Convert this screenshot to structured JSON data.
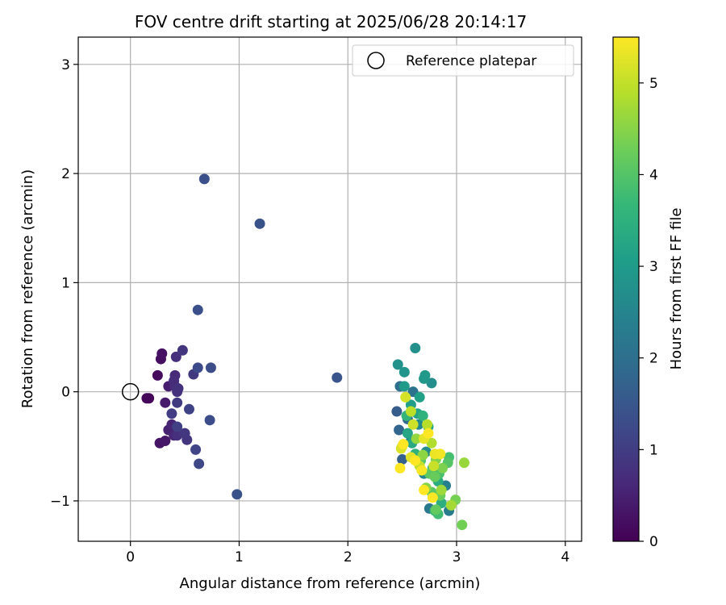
{
  "chart_data": {
    "type": "scatter",
    "title": "FOV centre drift starting at 2025/06/28 20:14:17",
    "xlabel": "Angular distance from reference (arcmin)",
    "ylabel": "Rotation from reference (arcmin)",
    "xlim": [
      -0.48,
      4.15
    ],
    "ylim": [
      -1.37,
      3.25
    ],
    "xticks": [
      0,
      1,
      2,
      3,
      4
    ],
    "yticks": [
      -1,
      0,
      1,
      2,
      3
    ],
    "grid": true,
    "legend": {
      "placement": "top-right",
      "entries": [
        "Reference platepar"
      ]
    },
    "reference_point": {
      "x": 0,
      "y": 0,
      "label": "Reference platepar"
    },
    "colorbar": {
      "label": "Hours from first FF file",
      "range": [
        0,
        5.5
      ],
      "ticks": [
        0,
        1,
        2,
        3,
        4,
        5
      ],
      "colormap": "viridis",
      "colors": [
        "#440154",
        "#482878",
        "#3e4989",
        "#31688e",
        "#26828e",
        "#1f9e89",
        "#35b779",
        "#6ece58",
        "#b5de2b",
        "#fde725"
      ]
    },
    "points": [
      {
        "x": 0.17,
        "y": -0.06,
        "t": 0.05
      },
      {
        "x": 0.15,
        "y": -0.06,
        "t": 0.1
      },
      {
        "x": 0.25,
        "y": 0.15,
        "t": 0.15
      },
      {
        "x": 0.28,
        "y": 0.3,
        "t": 0.2
      },
      {
        "x": 0.29,
        "y": 0.35,
        "t": 0.25
      },
      {
        "x": 0.27,
        "y": -0.47,
        "t": 0.3
      },
      {
        "x": 0.32,
        "y": -0.45,
        "t": 0.35
      },
      {
        "x": 0.32,
        "y": -0.1,
        "t": 0.4
      },
      {
        "x": 0.35,
        "y": 0.05,
        "t": 0.45
      },
      {
        "x": 0.35,
        "y": -0.35,
        "t": 0.5
      },
      {
        "x": 0.38,
        "y": -0.3,
        "t": 0.55
      },
      {
        "x": 0.4,
        "y": -0.4,
        "t": 0.6
      },
      {
        "x": 0.41,
        "y": 0.15,
        "t": 0.65
      },
      {
        "x": 0.4,
        "y": 0.1,
        "t": 0.7
      },
      {
        "x": 0.41,
        "y": 0.05,
        "t": 0.7
      },
      {
        "x": 0.42,
        "y": 0.32,
        "t": 0.75
      },
      {
        "x": 0.43,
        "y": -0.4,
        "t": 0.75
      },
      {
        "x": 0.43,
        "y": 0.0,
        "t": 0.8
      },
      {
        "x": 0.44,
        "y": 0.03,
        "t": 0.8
      },
      {
        "x": 0.48,
        "y": 0.38,
        "t": 0.85
      },
      {
        "x": 0.52,
        "y": -0.44,
        "t": 0.85
      },
      {
        "x": 0.5,
        "y": -0.38,
        "t": 0.9
      },
      {
        "x": 0.43,
        "y": -0.1,
        "t": 0.95
      },
      {
        "x": 0.58,
        "y": 0.16,
        "t": 0.95
      },
      {
        "x": 0.38,
        "y": -0.2,
        "t": 1.0
      },
      {
        "x": 0.43,
        "y": -0.32,
        "t": 1.05
      },
      {
        "x": 0.54,
        "y": -0.16,
        "t": 1.1
      },
      {
        "x": 0.6,
        "y": -0.53,
        "t": 1.15
      },
      {
        "x": 0.63,
        "y": -0.66,
        "t": 1.2
      },
      {
        "x": 0.62,
        "y": 0.22,
        "t": 1.25
      },
      {
        "x": 0.74,
        "y": 0.22,
        "t": 1.3
      },
      {
        "x": 0.73,
        "y": -0.26,
        "t": 1.3
      },
      {
        "x": 0.62,
        "y": 0.75,
        "t": 1.35
      },
      {
        "x": 0.68,
        "y": 1.95,
        "t": 1.35
      },
      {
        "x": 1.19,
        "y": 1.54,
        "t": 1.4
      },
      {
        "x": 0.98,
        "y": -0.94,
        "t": 1.4
      },
      {
        "x": 1.9,
        "y": 0.13,
        "t": 1.45
      },
      {
        "x": 2.45,
        "y": -0.18,
        "t": 1.6
      },
      {
        "x": 2.5,
        "y": -0.62,
        "t": 1.7
      },
      {
        "x": 2.47,
        "y": -0.35,
        "t": 1.8
      },
      {
        "x": 2.55,
        "y": -0.25,
        "t": 1.9
      },
      {
        "x": 2.48,
        "y": 0.05,
        "t": 2.0
      },
      {
        "x": 2.6,
        "y": 0.0,
        "t": 2.1
      },
      {
        "x": 2.75,
        "y": -1.07,
        "t": 2.2
      },
      {
        "x": 2.93,
        "y": -1.09,
        "t": 2.3
      },
      {
        "x": 2.9,
        "y": -0.86,
        "t": 2.4
      },
      {
        "x": 2.7,
        "y": -0.75,
        "t": 2.5
      },
      {
        "x": 2.58,
        "y": -0.45,
        "t": 2.55
      },
      {
        "x": 2.65,
        "y": -0.3,
        "t": 2.6
      },
      {
        "x": 2.72,
        "y": -0.55,
        "t": 2.65
      },
      {
        "x": 2.77,
        "y": 0.08,
        "t": 2.7
      },
      {
        "x": 2.62,
        "y": 0.4,
        "t": 2.75
      },
      {
        "x": 2.46,
        "y": 0.25,
        "t": 2.8
      },
      {
        "x": 2.52,
        "y": 0.18,
        "t": 2.85
      },
      {
        "x": 2.7,
        "y": 0.12,
        "t": 2.9
      },
      {
        "x": 2.71,
        "y": 0.15,
        "t": 2.95
      },
      {
        "x": 2.52,
        "y": 0.05,
        "t": 3.0
      },
      {
        "x": 2.58,
        "y": -0.12,
        "t": 3.05
      },
      {
        "x": 2.66,
        "y": -0.05,
        "t": 3.1
      },
      {
        "x": 2.74,
        "y": -0.32,
        "t": 3.15
      },
      {
        "x": 2.64,
        "y": -0.2,
        "t": 3.2
      },
      {
        "x": 2.55,
        "y": -0.38,
        "t": 3.25
      },
      {
        "x": 2.59,
        "y": -0.47,
        "t": 3.3
      },
      {
        "x": 2.78,
        "y": -0.7,
        "t": 3.35
      },
      {
        "x": 2.83,
        "y": -0.82,
        "t": 3.4
      },
      {
        "x": 2.86,
        "y": -1.02,
        "t": 3.45
      },
      {
        "x": 2.62,
        "y": -0.57,
        "t": 3.5
      },
      {
        "x": 2.69,
        "y": -0.22,
        "t": 3.55
      },
      {
        "x": 2.54,
        "y": -0.22,
        "t": 3.6
      },
      {
        "x": 2.8,
        "y": -1.09,
        "t": 3.7
      },
      {
        "x": 2.83,
        "y": -1.12,
        "t": 3.8
      },
      {
        "x": 2.93,
        "y": -0.6,
        "t": 3.85
      },
      {
        "x": 2.84,
        "y": -0.75,
        "t": 3.9
      },
      {
        "x": 2.67,
        "y": -0.63,
        "t": 3.95
      },
      {
        "x": 2.92,
        "y": -0.65,
        "t": 4.0
      },
      {
        "x": 2.77,
        "y": -0.92,
        "t": 4.05
      },
      {
        "x": 2.75,
        "y": -0.75,
        "t": 4.1
      },
      {
        "x": 2.81,
        "y": -1.08,
        "t": 4.15
      },
      {
        "x": 2.8,
        "y": -0.78,
        "t": 4.2
      },
      {
        "x": 2.85,
        "y": -0.95,
        "t": 4.25
      },
      {
        "x": 3.05,
        "y": -1.22,
        "t": 4.3
      },
      {
        "x": 2.99,
        "y": -0.99,
        "t": 4.35
      },
      {
        "x": 2.87,
        "y": -0.7,
        "t": 4.4
      },
      {
        "x": 2.81,
        "y": -0.62,
        "t": 4.45
      },
      {
        "x": 2.72,
        "y": -0.88,
        "t": 4.5
      },
      {
        "x": 2.69,
        "y": -0.58,
        "t": 4.55
      },
      {
        "x": 2.63,
        "y": -0.43,
        "t": 4.6
      },
      {
        "x": 3.07,
        "y": -0.65,
        "t": 4.65
      },
      {
        "x": 2.86,
        "y": -0.9,
        "t": 4.7
      },
      {
        "x": 2.95,
        "y": -1.04,
        "t": 4.75
      },
      {
        "x": 2.5,
        "y": -0.5,
        "t": 4.8
      },
      {
        "x": 2.77,
        "y": -0.47,
        "t": 4.85
      },
      {
        "x": 2.73,
        "y": -0.3,
        "t": 4.9
      },
      {
        "x": 2.58,
        "y": -0.18,
        "t": 4.95
      },
      {
        "x": 2.66,
        "y": -0.68,
        "t": 5.0
      },
      {
        "x": 2.79,
        "y": -0.68,
        "t": 5.05
      },
      {
        "x": 2.6,
        "y": -0.3,
        "t": 5.1
      },
      {
        "x": 2.53,
        "y": -0.05,
        "t": 5.15
      },
      {
        "x": 2.49,
        "y": -0.52,
        "t": 5.2
      },
      {
        "x": 2.58,
        "y": -0.6,
        "t": 5.25
      },
      {
        "x": 2.7,
        "y": -0.43,
        "t": 5.3
      },
      {
        "x": 2.8,
        "y": -0.57,
        "t": 5.35
      },
      {
        "x": 2.85,
        "y": -0.57,
        "t": 5.4
      },
      {
        "x": 2.68,
        "y": -0.72,
        "t": 5.45
      },
      {
        "x": 2.48,
        "y": -0.7,
        "t": 5.5
      },
      {
        "x": 2.7,
        "y": -0.9,
        "t": 5.5
      },
      {
        "x": 2.78,
        "y": -0.97,
        "t": 5.5
      },
      {
        "x": 2.74,
        "y": -0.38,
        "t": 5.5
      },
      {
        "x": 2.51,
        "y": -0.48,
        "t": 5.5
      },
      {
        "x": 2.62,
        "y": -0.63,
        "t": 5.5
      }
    ]
  }
}
